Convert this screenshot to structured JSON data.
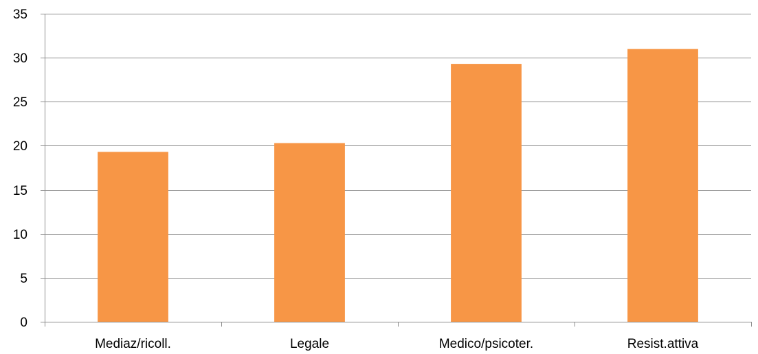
{
  "chart_data": {
    "type": "bar",
    "categories": [
      "Mediaz/ricoll.",
      "Legale",
      "Medico/psicoter.",
      "Resist.attiva"
    ],
    "values": [
      19.3,
      20.3,
      29.3,
      31.0
    ],
    "ylim": [
      0,
      35
    ],
    "yticks": [
      0,
      5,
      10,
      15,
      20,
      25,
      30,
      35
    ],
    "grid": true,
    "legend": "none",
    "title": "",
    "xlabel": "",
    "ylabel": "",
    "bar_color": "#F79646",
    "grid_color": "#8C8C8C"
  }
}
